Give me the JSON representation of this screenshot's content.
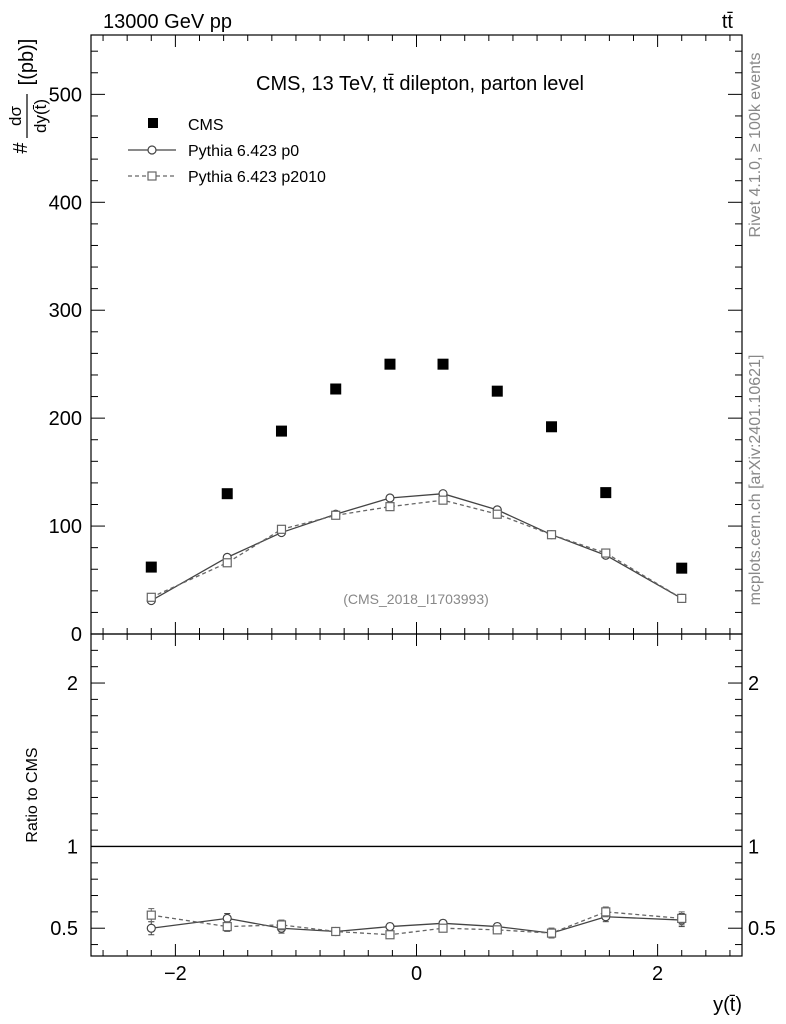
{
  "header": {
    "energy_label": "13000 GeV pp",
    "process_label": "tt̄"
  },
  "side_labels": {
    "rivet": "Rivet 4.1.0, ≥ 100k events",
    "mcplots": "mcplots.cern.ch [arXiv:2401.10621]"
  },
  "chart_data": {
    "type": "scatter",
    "title": "CMS, 13 TeV, tt̄ dilepton, parton level",
    "watermark": "(CMS_2018_I1703993)",
    "ylabel_numerator": "dσ",
    "ylabel_denominator": "dy(t̄)",
    "ylabel_prefix": "#",
    "ylabel_unit": "[(pb)]",
    "xlabel": "y(t̄)",
    "ratio_ylabel": "Ratio to CMS",
    "xlim": [
      -2.7,
      2.7
    ],
    "ylim": [
      0,
      555
    ],
    "ratio_ylim": [
      0.33,
      2.3
    ],
    "main_yticks": [
      0,
      100,
      200,
      300,
      400,
      500
    ],
    "main_ytick_labels": [
      "0",
      "100",
      "200",
      "300",
      "400",
      "500"
    ],
    "ratio_yticks": [
      0.5,
      1,
      2
    ],
    "ratio_ytick_labels": [
      "0.5",
      "1",
      "2"
    ],
    "xticks": [
      -2,
      0,
      2
    ],
    "xtick_labels": [
      "−2",
      "0",
      "2"
    ],
    "x": [
      -2.2,
      -1.57,
      -1.12,
      -0.67,
      -0.22,
      0.22,
      0.67,
      1.12,
      1.57,
      2.2
    ],
    "legend": [
      "CMS",
      "Pythia 6.423 p0",
      "Pythia 6.423 p2010"
    ],
    "series": [
      {
        "name": "CMS",
        "marker": "filled-square",
        "color": "#000000",
        "values": [
          62,
          130,
          188,
          227,
          250,
          250,
          225,
          192,
          131,
          61
        ]
      },
      {
        "name": "Pythia 6.423 p0",
        "marker": "open-circle",
        "line": "solid",
        "color": "#444444",
        "values": [
          31,
          71,
          94,
          111,
          126,
          130,
          115,
          92,
          73,
          33
        ],
        "errors": [
          2,
          2,
          2,
          2,
          3,
          3,
          2,
          2,
          2,
          2
        ],
        "ratio": [
          0.5,
          0.56,
          0.5,
          0.48,
          0.51,
          0.53,
          0.51,
          0.47,
          0.57,
          0.55
        ],
        "ratio_errors": [
          0.04,
          0.03,
          0.03,
          0.02,
          0.02,
          0.02,
          0.02,
          0.03,
          0.03,
          0.04
        ]
      },
      {
        "name": "Pythia 6.423 p2010",
        "marker": "open-square",
        "line": "dashed",
        "color": "#666666",
        "values": [
          34,
          66,
          97,
          110,
          118,
          124,
          111,
          92,
          75,
          33
        ],
        "errors": [
          2,
          2,
          2,
          2,
          3,
          3,
          2,
          2,
          2,
          2
        ],
        "ratio": [
          0.58,
          0.51,
          0.52,
          0.48,
          0.46,
          0.5,
          0.49,
          0.47,
          0.6,
          0.56
        ],
        "ratio_errors": [
          0.04,
          0.03,
          0.03,
          0.02,
          0.02,
          0.02,
          0.02,
          0.03,
          0.03,
          0.04
        ]
      }
    ]
  }
}
